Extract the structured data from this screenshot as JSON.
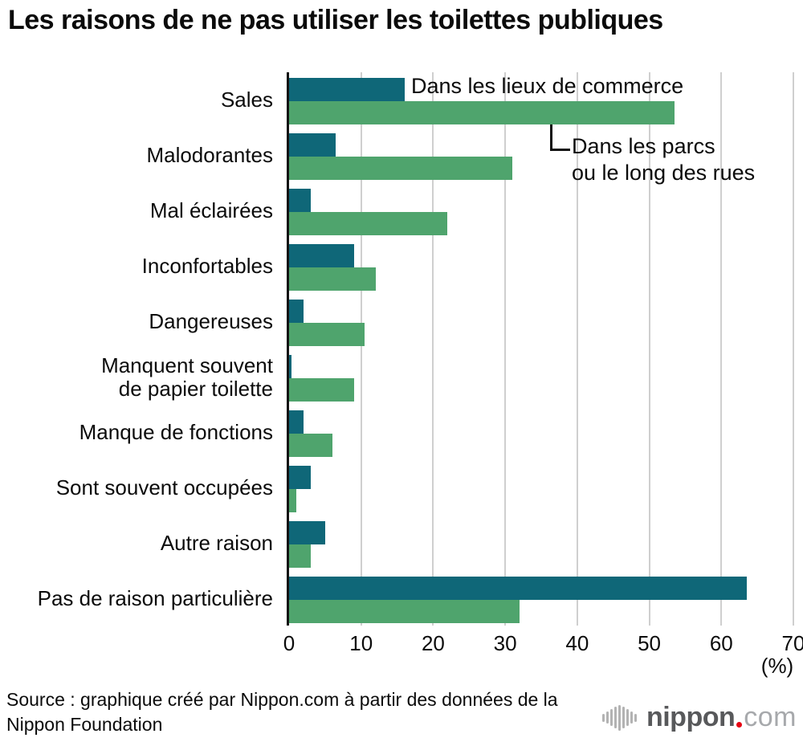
{
  "title": "Les raisons de ne pas utiliser les toilettes publiques",
  "chart_data": {
    "type": "bar",
    "orientation": "horizontal",
    "title": "Les raisons de ne pas utiliser les toilettes publiques",
    "categories": [
      "Sales",
      "Malodorantes",
      "Mal éclairées",
      "Inconfortables",
      "Dangereuses",
      "Manquent souvent de papier toilette",
      "Manque de fonctions",
      "Sont souvent occupées",
      "Autre raison",
      "Pas de raison particulière"
    ],
    "display_labels": [
      "Sales",
      "Malodorantes",
      "Mal éclairées",
      "Inconfortables",
      "Dangereuses",
      "Manquent souvent\nde papier toilette",
      "Manque de fonctions",
      "Sont souvent occupées",
      "Autre raison",
      "Pas de raison particulière"
    ],
    "series": [
      {
        "name": "Dans les lieux de commerce",
        "color": "#0f6778",
        "values": [
          16,
          6.5,
          3,
          9,
          2,
          0.3,
          2,
          3,
          5,
          63.5
        ]
      },
      {
        "name": "Dans les parcs ou le long des rues",
        "color": "#4fa46d",
        "values": [
          53.5,
          31,
          22,
          12,
          10.5,
          9,
          6,
          1,
          3,
          32
        ]
      }
    ],
    "xlim": [
      0,
      70
    ],
    "x_ticks": [
      0,
      10,
      20,
      30,
      40,
      50,
      60,
      70
    ],
    "unit": "(%)",
    "grid": true,
    "legend_position": "inline-annotations"
  },
  "legend": {
    "series1": "Dans les lieux de commerce",
    "series2": "Dans les parcs\nou le long des rues"
  },
  "axis": {
    "unit": "(%)"
  },
  "source": {
    "text": "Source : graphique créé par Nippon.com à partir des données de la\nNippon Foundation"
  },
  "logo": {
    "name": "nippon",
    "tld": "com",
    "icon": "soundwave-bars-icon",
    "accent_color": "#e60012",
    "name_color": "#58595b",
    "tld_color": "#a7a9ac"
  },
  "colors": {
    "series1": "#0f6778",
    "series2": "#4fa46d",
    "gridline": "#cfcfcf",
    "axis": "#111111",
    "background": "#ffffff"
  }
}
